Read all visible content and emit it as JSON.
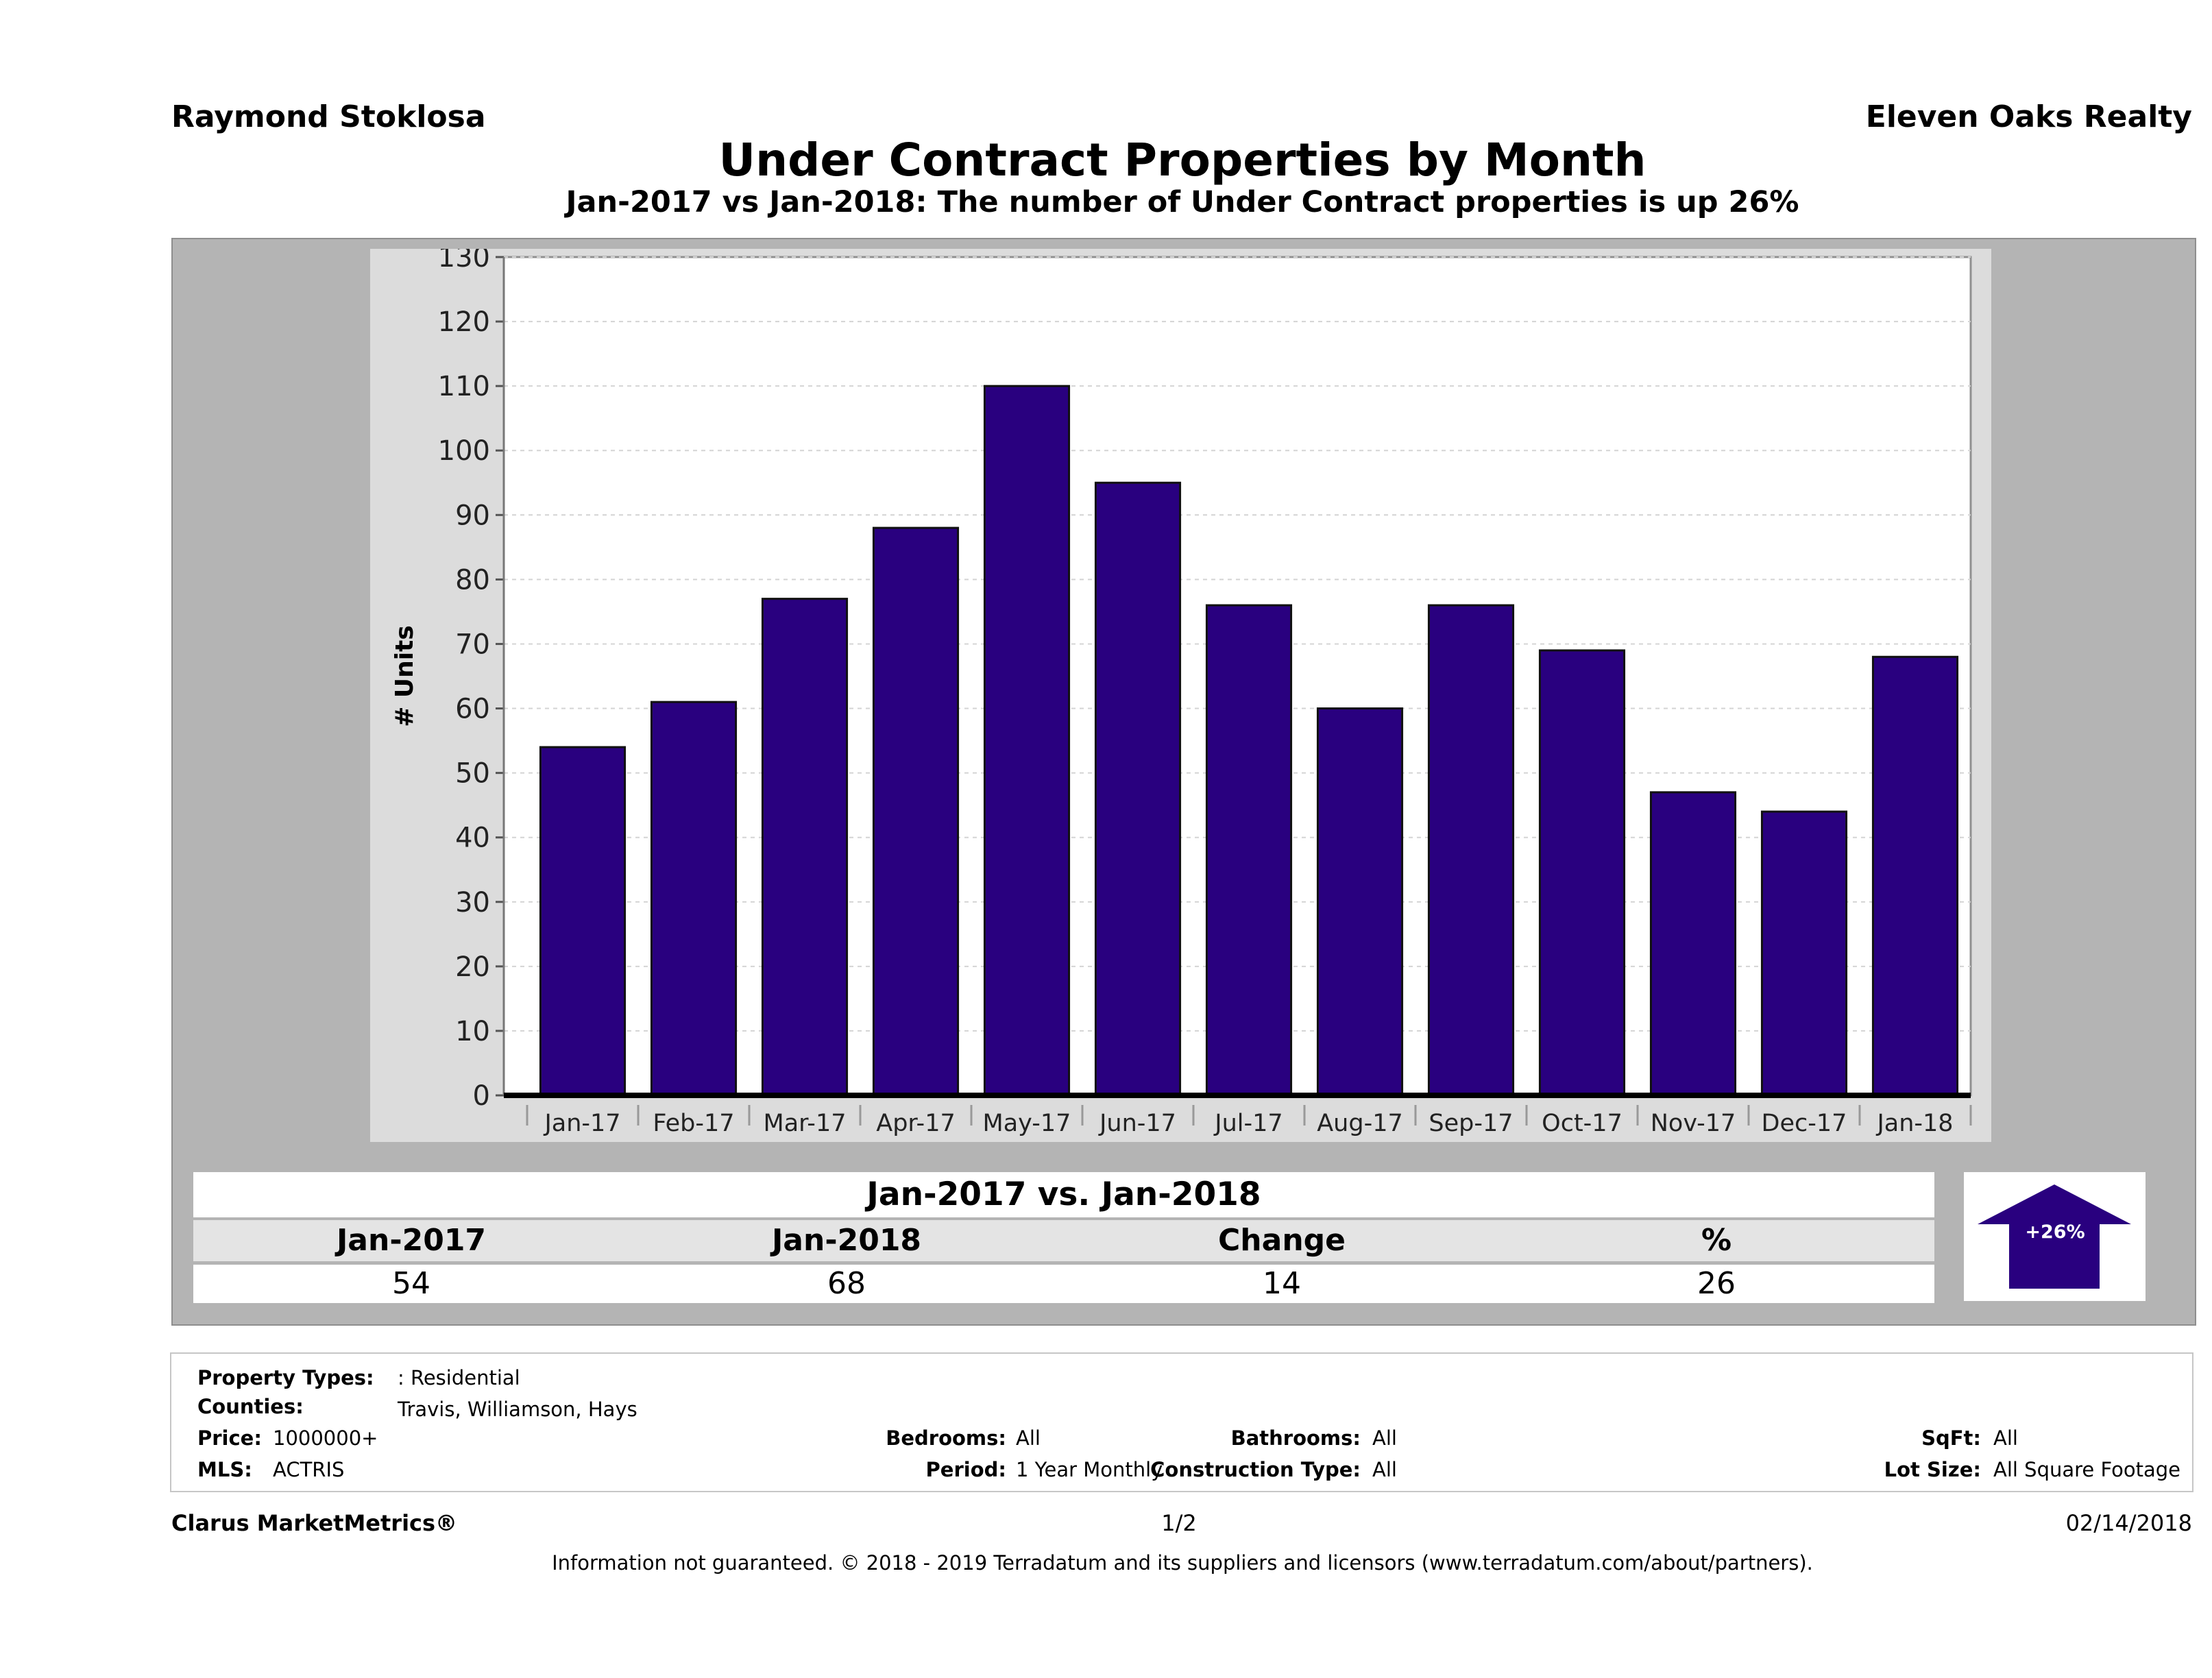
{
  "header": {
    "agent": "Raymond Stoklosa",
    "brokerage": "Eleven Oaks Realty",
    "title": "Under Contract Properties by Month",
    "subtitle": "Jan-2017 vs Jan-2018: The number of Under Contract  properties is up 26%"
  },
  "chart_data": {
    "type": "bar",
    "title": "Under Contract Properties by Month",
    "xlabel": "",
    "ylabel": "# Units",
    "categories": [
      "Jan-17",
      "Feb-17",
      "Mar-17",
      "Apr-17",
      "May-17",
      "Jun-17",
      "Jul-17",
      "Aug-17",
      "Sep-17",
      "Oct-17",
      "Nov-17",
      "Dec-17",
      "Jan-18"
    ],
    "values": [
      54,
      61,
      77,
      88,
      110,
      95,
      76,
      60,
      76,
      69,
      47,
      44,
      68
    ],
    "ylim": [
      0,
      130
    ],
    "yticks": [
      0,
      10,
      20,
      30,
      40,
      50,
      60,
      70,
      80,
      90,
      100,
      110,
      120,
      130
    ],
    "grid": true,
    "bar_color": "#29007f"
  },
  "comparison": {
    "heading": "Jan-2017 vs. Jan-2018",
    "columns": [
      "Jan-2017",
      "Jan-2018",
      "Change",
      "%"
    ],
    "values": [
      "54",
      "68",
      "14",
      "26"
    ],
    "badge": "+26%",
    "badge_color": "#29007f"
  },
  "criteria": {
    "property_types_label": "Property Types:",
    "property_types_value": ": Residential",
    "counties_label": "Counties:",
    "counties_value": "Travis, Williamson, Hays",
    "price_label": "Price:",
    "price_value": "1000000+",
    "mls_label": "MLS:",
    "mls_value": "ACTRIS",
    "bedrooms_label": "Bedrooms:",
    "bedrooms_value": "All",
    "period_label": "Period:",
    "period_value": "1 Year Monthly",
    "bathrooms_label": "Bathrooms:",
    "bathrooms_value": "All",
    "construction_label": "Construction Type:",
    "construction_value": "All",
    "sqft_label": "SqFt:",
    "sqft_value": "All",
    "lot_label": "Lot Size:",
    "lot_value": "All Square Footage"
  },
  "footer": {
    "product": "Clarus MarketMetrics®",
    "page": "1/2",
    "date": "02/14/2018",
    "disclaimer": "Information not guaranteed. © 2018 - 2019 Terradatum and its suppliers and licensors (www.terradatum.com/about/partners)."
  }
}
